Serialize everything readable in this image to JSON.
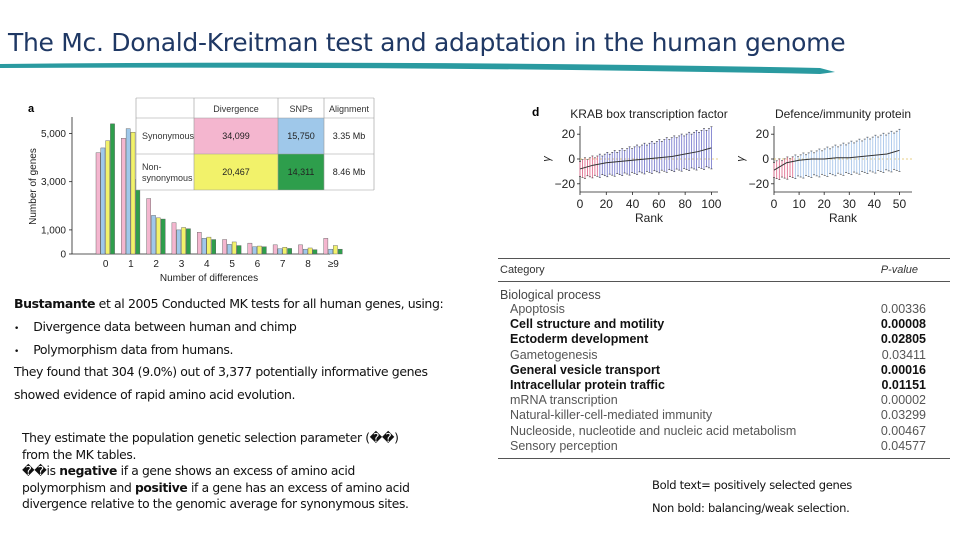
{
  "slide": {
    "title": "The Mc. Donald-Kreitman test and adaptation in the human genome",
    "colors": {
      "title": "#1f3864",
      "rule": "#2a9aa0"
    }
  },
  "fig_a": {
    "panel_label": "a",
    "ylabel": "Number of genes",
    "xlabel": "Number of differences",
    "y_ticks": [
      "5,000",
      "3,000",
      "1,000",
      "0"
    ],
    "x_ticks": [
      "0",
      "1",
      "2",
      "3",
      "4",
      "5",
      "6",
      "7",
      "8",
      "≥9"
    ],
    "table": {
      "headers": [
        "Divergence",
        "SNPs",
        "Alignment"
      ],
      "rows": [
        {
          "label": [
            "Synonymous"
          ],
          "divergence": "34,099",
          "snps": "15,750",
          "alignment": "3.35 Mb"
        },
        {
          "label": [
            "Non-",
            "synonymous"
          ],
          "divergence": "20,467",
          "snps": "14,311",
          "alignment": "8.46 Mb"
        }
      ]
    },
    "colors": {
      "syn_div": "#f4b6cf",
      "syn_snp": "#9fc8ea",
      "nonsyn_div": "#f2f26a",
      "nonsyn_snp": "#2e9e4c"
    }
  },
  "chart_data": [
    {
      "type": "bar",
      "panel": "a",
      "categories": [
        "0",
        "1",
        "2",
        "3",
        "4",
        "5",
        "6",
        "7",
        "8",
        "≥9"
      ],
      "series": [
        {
          "values": [
            4200,
            4800,
            2300,
            1300,
            900,
            600,
            450,
            380,
            380,
            650
          ]
        },
        {
          "values": [
            4400,
            5200,
            1600,
            1000,
            650,
            400,
            300,
            220,
            200,
            200
          ]
        },
        {
          "values": [
            4700,
            5050,
            1500,
            1100,
            700,
            500,
            330,
            280,
            250,
            350
          ]
        },
        {
          "values": [
            5400,
            3100,
            1450,
            1050,
            600,
            350,
            300,
            230,
            180,
            200
          ]
        }
      ],
      "xlabel": "Number of differences",
      "ylabel": "Number of genes",
      "ylim": [
        0,
        5600
      ]
    },
    {
      "type": "line",
      "panel": "d",
      "title": "KRAB box transcription factor",
      "x_ticks": [
        "0",
        "20",
        "40",
        "60",
        "80",
        "100"
      ],
      "y_ticks": [
        "20",
        "0",
        "−20"
      ],
      "xlabel": "Rank",
      "ylabel": "γ",
      "xlim": [
        0,
        105
      ],
      "ylim": [
        -25,
        25
      ],
      "x": [
        0,
        10,
        20,
        30,
        40,
        50,
        60,
        70,
        80,
        90,
        100
      ],
      "values": [
        -8,
        -5,
        -3,
        -2,
        -1,
        0,
        1,
        2,
        4,
        6,
        9
      ]
    },
    {
      "type": "line",
      "panel": "d",
      "title": "Defence/immunity protein",
      "x_ticks": [
        "0",
        "10",
        "20",
        "30",
        "40",
        "50"
      ],
      "y_ticks": [
        "20",
        "0",
        "−20"
      ],
      "xlabel": "Rank",
      "ylabel": "γ",
      "xlim": [
        0,
        55
      ],
      "ylim": [
        -25,
        25
      ],
      "x": [
        0,
        5,
        10,
        15,
        20,
        25,
        30,
        35,
        40,
        45,
        50
      ],
      "values": [
        -9,
        -3,
        -1,
        0,
        0,
        1,
        1,
        2,
        3,
        4,
        7
      ]
    }
  ],
  "fig_d": {
    "panel_label": "d"
  },
  "category_table": {
    "header_category": "Category",
    "header_p": "P-value",
    "group": "Biological process",
    "rows": [
      {
        "name": "Apoptosis",
        "p": "0.00336",
        "bold": false
      },
      {
        "name": "Cell structure and motility",
        "p": "0.00008",
        "bold": true
      },
      {
        "name": "Ectoderm development",
        "p": "0.02805",
        "bold": true
      },
      {
        "name": "Gametogenesis",
        "p": "0.03411",
        "bold": false
      },
      {
        "name": "General vesicle transport",
        "p": "0.00016",
        "bold": true
      },
      {
        "name": "Intracellular protein traffic",
        "p": "0.01151",
        "bold": true
      },
      {
        "name": "mRNA transcription",
        "p": "0.00002",
        "bold": false
      },
      {
        "name": "Natural-killer-cell-mediated immunity",
        "p": "0.03299",
        "bold": false
      },
      {
        "name": "Nucleoside, nucleotide and nucleic acid metabolism",
        "p": "0.00467",
        "bold": false
      },
      {
        "name": "Sensory perception",
        "p": "0.04577",
        "bold": false
      }
    ]
  },
  "body": {
    "intro_author": "Bustamante",
    "intro_rest": " et al 2005 Conducted MK tests for all human genes, using:",
    "bullets": [
      "Divergence data between human and chimp",
      "Polymorphism data from humans."
    ],
    "finding_1": "They found that 304 (9.0%) out of 3,377 potentially informative genes",
    "finding_2": "showed evidence of rapid amino acid evolution.",
    "estimate": {
      "line1": "They estimate the population genetic selection parameter (��)",
      "line2": "from the MK tables.",
      "line3_prefix": "��is ",
      "negative": "negative",
      "line3_rest": " if a gene shows an excess of amino acid",
      "line4_prefix": "polymorphism and ",
      "positive": "positive",
      "line4_rest": " if a gene has an excess of amino acid",
      "line5": "divergence relative to the genomic average for synonymous sites."
    }
  },
  "notes": {
    "bold_note": "Bold text= positively selected genes",
    "nonbold_note": "Non bold: balancing/weak selection."
  }
}
